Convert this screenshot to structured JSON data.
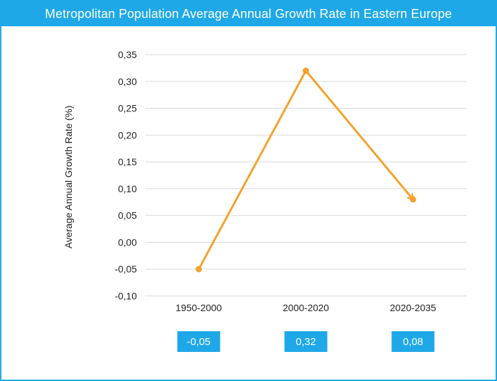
{
  "colors": {
    "accent": "#1fa8e8",
    "line": "#f5a12a",
    "grid": "#d9d9d9"
  },
  "chart_data": {
    "type": "line",
    "title": "Metropolitan Population Average Annual Growth Rate in Eastern Europe",
    "ylabel": "Average Annual Growth Rate (%)",
    "xlabel": "",
    "categories": [
      "1950-2000",
      "2000-2020",
      "2020-2035"
    ],
    "series": [
      {
        "values": [
          -0.05,
          0.32,
          0.08
        ]
      }
    ],
    "ylim": [
      -0.1,
      0.35
    ],
    "yticks": [
      "0,35",
      "0,30",
      "0,25",
      "0,20",
      "0,15",
      "0,10",
      "0,05",
      "0,00",
      "-0,05",
      "-0,10"
    ],
    "ytick_values": [
      0.35,
      0.3,
      0.25,
      0.2,
      0.15,
      0.1,
      0.05,
      0.0,
      -0.05,
      -0.1
    ],
    "data_labels": [
      "-0,05",
      "0,32",
      "0,08"
    ],
    "grid": true,
    "legend": "none",
    "last_segment_arrow": true
  }
}
